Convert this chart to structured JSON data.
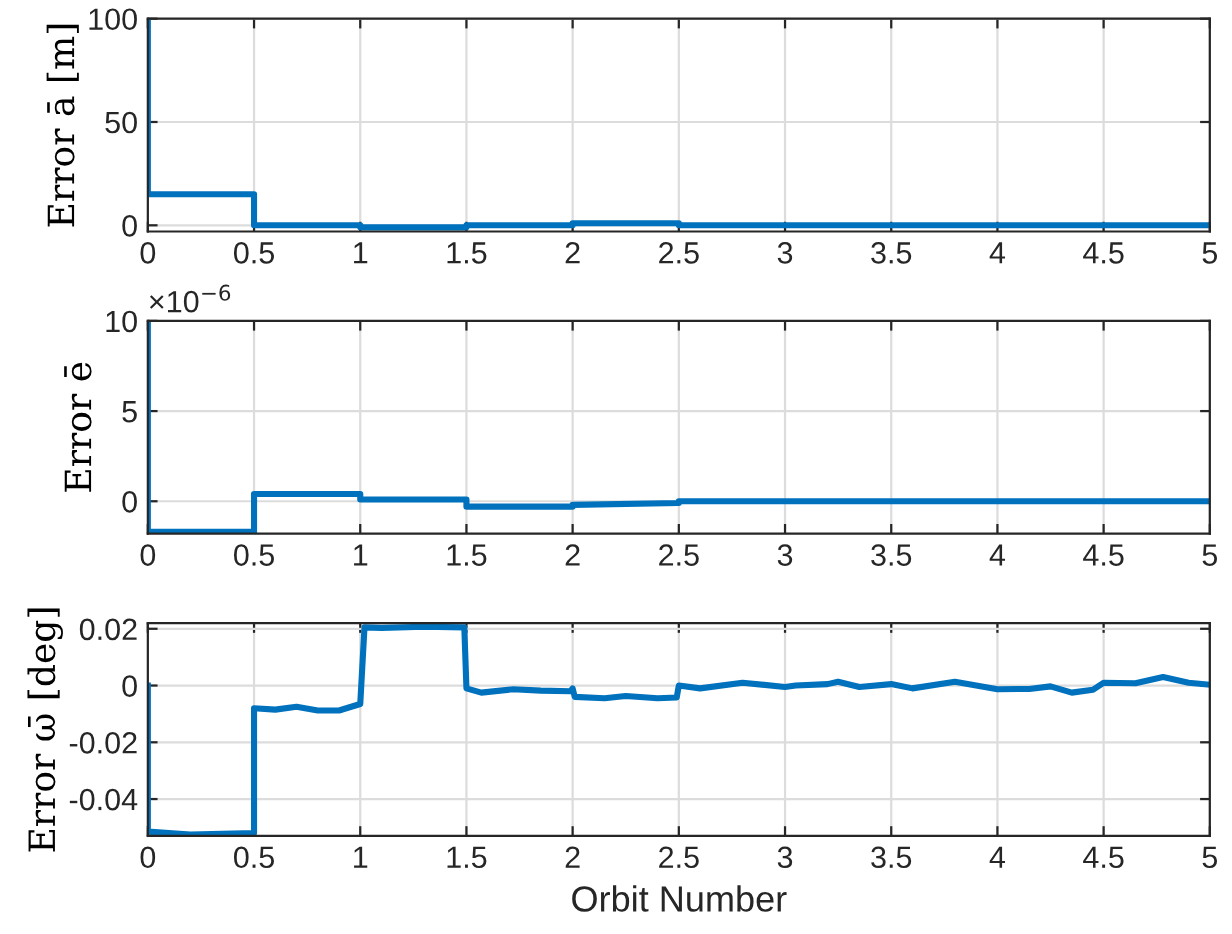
{
  "chart_data": [
    {
      "type": "line",
      "ylabel": "Error ā [m]",
      "xlim": [
        0,
        5
      ],
      "xticks": [
        0,
        0.5,
        1,
        1.5,
        2,
        2.5,
        3,
        3.5,
        4,
        4.5,
        5
      ],
      "ylim": [
        -3,
        100
      ],
      "yticks": [
        0,
        50,
        100
      ],
      "grid": true,
      "series": [
        {
          "color": "#0072bd",
          "x": [
            0,
            0,
            0.5,
            0.5,
            1.0,
            1.0,
            1.5,
            1.5,
            2.0,
            2.0,
            2.5,
            2.5,
            5
          ],
          "values": [
            100,
            15,
            15,
            0,
            0,
            -1,
            -1,
            0,
            0,
            1,
            1,
            0,
            0
          ]
        }
      ]
    },
    {
      "type": "line",
      "ylabel": "Error ē",
      "annotations": [
        "×10$^{−6}$"
      ],
      "xlim": [
        0,
        5
      ],
      "xticks": [
        0,
        0.5,
        1,
        1.5,
        2,
        2.5,
        3,
        3.5,
        4,
        4.5,
        5
      ],
      "ylim": [
        -1.8,
        10
      ],
      "yticks": [
        0,
        5,
        10
      ],
      "grid": true,
      "series": [
        {
          "color": "#0072bd",
          "x": [
            0,
            0,
            0.5,
            0.5,
            1.0,
            1.0,
            1.5,
            1.5,
            2.0,
            2.0,
            2.5,
            2.5,
            5
          ],
          "values": [
            10,
            -1.7,
            -1.7,
            0.4,
            0.4,
            0.1,
            0.1,
            -0.3,
            -0.3,
            -0.2,
            -0.1,
            0,
            0
          ]
        }
      ]
    },
    {
      "type": "line",
      "ylabel": "Error ω̄ [deg]",
      "xlabel": "Orbit Number",
      "xlim": [
        0,
        5
      ],
      "xticks": [
        0,
        0.5,
        1,
        1.5,
        2,
        2.5,
        3,
        3.5,
        4,
        4.5,
        5
      ],
      "ylim": [
        -0.053,
        0.022
      ],
      "yticks": [
        -0.04,
        -0.02,
        0,
        0.02
      ],
      "grid": true,
      "series": [
        {
          "color": "#0072bd",
          "x": [
            0,
            0,
            0.2,
            0.5,
            0.5,
            0.6,
            0.7,
            0.8,
            0.9,
            1.0,
            1.02,
            1.1,
            1.3,
            1.49,
            1.5,
            1.57,
            1.72,
            1.85,
            1.99,
            2.0,
            2.01,
            2.15,
            2.25,
            2.4,
            2.49,
            2.5,
            2.6,
            2.8,
            3.0,
            3.05,
            3.2,
            3.25,
            3.35,
            3.5,
            3.6,
            3.8,
            4.0,
            4.15,
            4.25,
            4.35,
            4.45,
            4.5,
            4.65,
            4.78,
            4.9,
            5.0
          ],
          "values": [
            0,
            -0.0515,
            -0.0525,
            -0.052,
            -0.008,
            -0.0085,
            -0.0075,
            -0.0088,
            -0.0088,
            -0.0065,
            0.0205,
            0.0203,
            0.0207,
            0.0205,
            -0.001,
            -0.0025,
            -0.0013,
            -0.0018,
            -0.002,
            -0.001,
            -0.004,
            -0.0045,
            -0.0037,
            -0.0045,
            -0.0042,
            0,
            -0.001,
            0.001,
            -0.0005,
            0,
            0.0005,
            0.0013,
            -0.0005,
            0.0005,
            -0.001,
            0.0013,
            -0.0013,
            -0.0012,
            -0.0003,
            -0.0025,
            -0.0015,
            0.001,
            0.0008,
            0.003,
            0.001,
            0.0003
          ]
        }
      ]
    }
  ]
}
